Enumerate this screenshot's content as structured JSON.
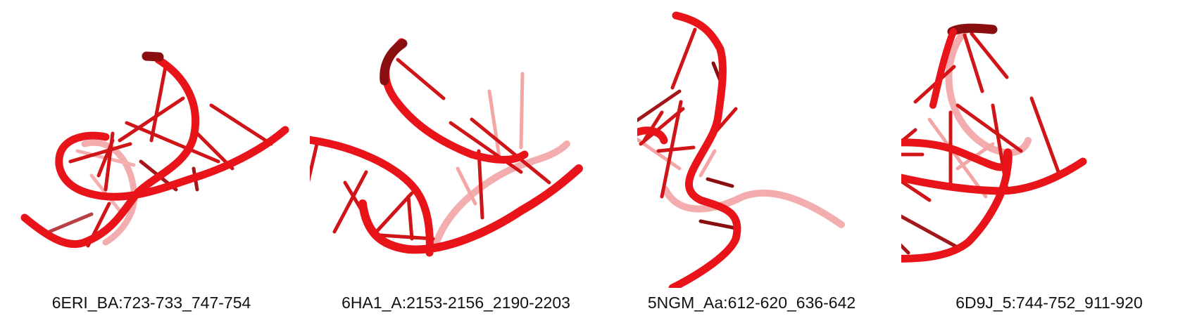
{
  "structures": [
    {
      "label": "6ERI_BA:723-733_747-754"
    },
    {
      "label": "6HA1_A:2153-2156_2190-2203"
    },
    {
      "label": "5NGM_Aa:612-620_636-642"
    },
    {
      "label": "6D9J_5:744-752_911-920"
    }
  ],
  "colors": {
    "backbone": "#e8141a",
    "backbone_dark": "#8a0d10",
    "backbone_faded": "#f08a8c",
    "caption_text": "#111111",
    "background": "#ffffff"
  }
}
